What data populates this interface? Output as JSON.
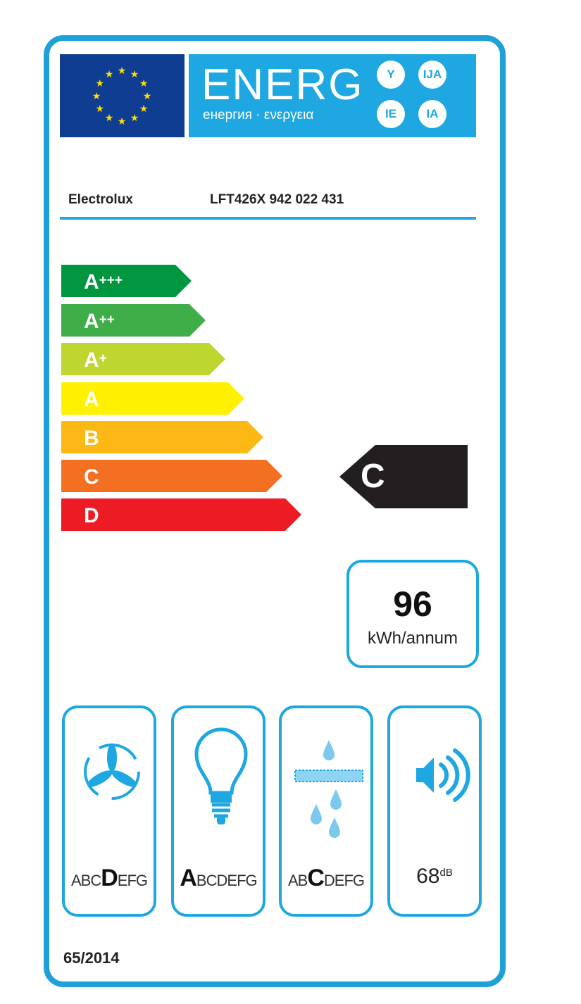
{
  "header": {
    "title": "ENERG",
    "subtitle": "енергия · ενεργεια",
    "suffixes": [
      "Y",
      "IJA",
      "IE",
      "IA"
    ]
  },
  "supplier": "Electrolux",
  "model": "LFT426X  942 022 431",
  "scale": [
    {
      "base": "A",
      "sup": "+++",
      "color": "#009640"
    },
    {
      "base": "A",
      "sup": "++",
      "color": "#3fae49"
    },
    {
      "base": "A",
      "sup": "+",
      "color": "#bed630"
    },
    {
      "base": "A",
      "sup": "",
      "color": "#fff100"
    },
    {
      "base": "B",
      "sup": "",
      "color": "#fcb814"
    },
    {
      "base": "C",
      "sup": "",
      "color": "#f36f21"
    },
    {
      "base": "D",
      "sup": "",
      "color": "#ed1b24"
    }
  ],
  "rating": "C",
  "consumption": {
    "value": "96",
    "unit": "kWh/annum"
  },
  "pictograms": [
    {
      "icon": "fan-icon",
      "classes": "ABCDEFG",
      "highlight": "D"
    },
    {
      "icon": "lightbulb-icon",
      "classes": "ABCDEFG",
      "highlight": "A"
    },
    {
      "icon": "grease-filter-icon",
      "classes": "ABCDEFG",
      "highlight": "C"
    },
    {
      "icon": "speaker-noise-icon",
      "value": "68",
      "unit": "dB"
    }
  ],
  "regulation": "65/2014",
  "colors": {
    "frame": "#1ea0d8",
    "eu_blue": "#0f3d91",
    "rating_arrow": "#231f20"
  }
}
